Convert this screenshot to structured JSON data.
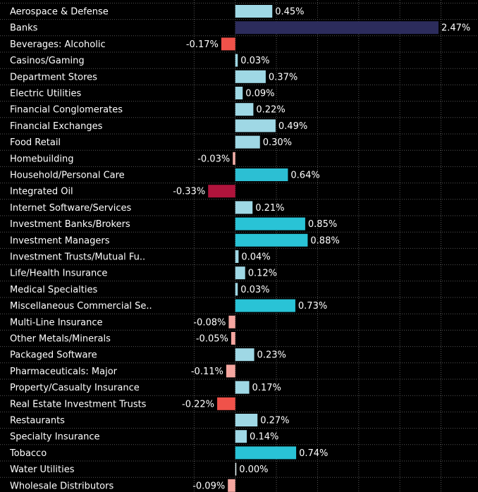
{
  "chart_data": {
    "type": "barh",
    "categories": [
      "Aerospace & Defense",
      "Banks",
      "Beverages: Alcoholic",
      "Casinos/Gaming",
      "Department Stores",
      "Electric Utilities",
      "Financial Conglomerates",
      "Financial Exchanges",
      "Food Retail",
      "Homebuilding",
      "Household/Personal Care",
      "Integrated Oil",
      "Internet Software/Services",
      "Investment Banks/Brokers",
      "Investment Managers",
      "Investment Trusts/Mutual Fu..",
      "Life/Health Insurance",
      "Medical Specialties",
      "Miscellaneous Commercial Se..",
      "Multi-Line Insurance",
      "Other Metals/Minerals",
      "Packaged Software",
      "Pharmaceuticals: Major",
      "Property/Casualty Insurance",
      "Real Estate Investment Trusts",
      "Restaurants",
      "Specialty Insurance",
      "Tobacco",
      "Water Utilities",
      "Wholesale Distributors"
    ],
    "values": [
      0.45,
      2.47,
      -0.17,
      0.03,
      0.37,
      0.09,
      0.22,
      0.49,
      0.3,
      -0.03,
      0.64,
      -0.33,
      0.21,
      0.85,
      0.88,
      0.04,
      0.12,
      0.03,
      0.73,
      -0.08,
      -0.05,
      0.23,
      -0.11,
      0.17,
      -0.22,
      0.27,
      0.14,
      0.74,
      0,
      -0.09
    ],
    "value_labels": [
      "0.45%",
      "2.47%",
      "-0.17%",
      "0.03%",
      "0.37%",
      "0.09%",
      "0.22%",
      "0.49%",
      "0.30%",
      "-0.03%",
      "0.64%",
      "-0.33%",
      "0.21%",
      "0.85%",
      "0.88%",
      "0.04%",
      "0.12%",
      "0.03%",
      "0.73%",
      "-0.08%",
      "-0.05%",
      "0.23%",
      "-0.11%",
      "0.17%",
      "-0.22%",
      "0.27%",
      "0.14%",
      "0.74%",
      "0.00%",
      "-0.09%"
    ],
    "colors": [
      "#9fd8e5",
      "#2c2c5c",
      "#f0524a",
      "#9fd8e5",
      "#9fd8e5",
      "#9fd8e5",
      "#9fd8e5",
      "#9fd8e5",
      "#9fd8e5",
      "#f5b0aa",
      "#2cbfd3",
      "#b0143c",
      "#9fd8e5",
      "#29c3d6",
      "#29c3d6",
      "#9fd8e5",
      "#9fd8e5",
      "#9fd8e5",
      "#29c3d6",
      "#f5a6a0",
      "#f5a6a0",
      "#9fd8e5",
      "#f5a6a0",
      "#9fd8e5",
      "#f0524a",
      "#9fd8e5",
      "#9fd8e5",
      "#29c3d6",
      "#e8f6f8",
      "#f5a6a0"
    ],
    "xlim": [
      -1,
      2.95
    ],
    "xticks": [
      -0.5,
      0,
      0.5,
      1,
      1.5,
      2,
      2.5
    ],
    "grid": true
  }
}
